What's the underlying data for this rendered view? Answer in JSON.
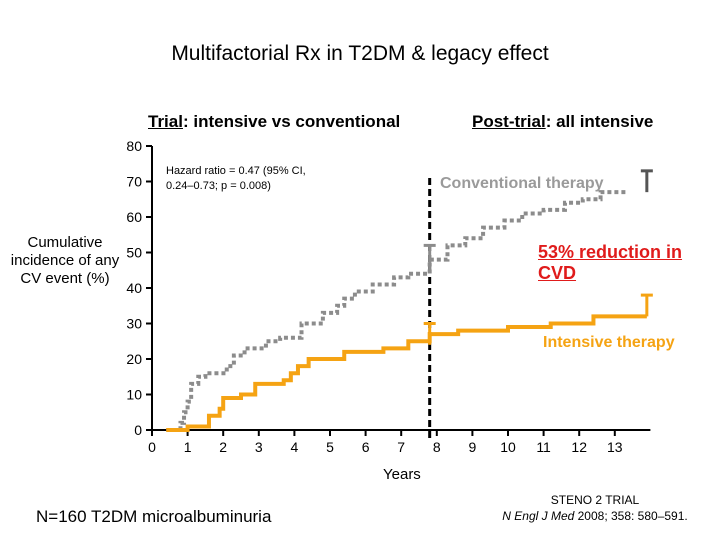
{
  "title": "Multifactorial Rx in T2DM & legacy effect",
  "subtitle_left": {
    "underlined": "Trial",
    "rest": ": intensive vs conventional"
  },
  "subtitle_right": {
    "underlined": "Post-trial",
    "rest": ": all intensive"
  },
  "hazard_ratio_text": "Hazard ratio = 0.47 (95% CI, 0.24–0.73; p = 0.008)",
  "conventional_label": "Conventional therapy",
  "reduction_label": "53% reduction in CVD",
  "intensive_label": "Intensive therapy",
  "footer_left": "N=160 T2DM microalbuminuria",
  "reference": {
    "line1": "STENO 2 TRIAL",
    "journal": "N Engl J Med",
    "rest": " 2008; 358: 580–591."
  },
  "colors": {
    "conventional": "#8c8c8c",
    "intensive": "#f5a313",
    "annotation": "#e01b1b",
    "axis": "#000000"
  },
  "chart_data": {
    "type": "line",
    "title": "Multifactorial Rx in T2DM & legacy effect",
    "xlabel": "Years",
    "ylabel": "Cumulative incidence of any CV event (%)",
    "xlim": [
      0,
      14
    ],
    "ylim": [
      0,
      80
    ],
    "x_ticks": [
      "0",
      "1",
      "2",
      "3",
      "4",
      "5",
      "6",
      "7",
      "8",
      "9",
      "10",
      "11",
      "12",
      "13"
    ],
    "y_ticks": [
      "0",
      "10",
      "20",
      "30",
      "40",
      "50",
      "60",
      "70",
      "80"
    ],
    "trial_end_year": 7.8,
    "series": [
      {
        "name": "Conventional therapy",
        "style": "dotted",
        "points": [
          [
            0.4,
            0
          ],
          [
            0.8,
            2
          ],
          [
            0.9,
            5
          ],
          [
            1.0,
            8
          ],
          [
            1.1,
            13
          ],
          [
            1.3,
            15
          ],
          [
            1.5,
            16
          ],
          [
            2.1,
            18
          ],
          [
            2.3,
            21
          ],
          [
            2.6,
            23
          ],
          [
            3.2,
            25
          ],
          [
            3.6,
            26
          ],
          [
            4.2,
            30
          ],
          [
            4.8,
            33
          ],
          [
            5.2,
            35
          ],
          [
            5.4,
            37
          ],
          [
            5.7,
            39
          ],
          [
            6.2,
            41
          ],
          [
            6.8,
            43
          ],
          [
            7.2,
            44
          ],
          [
            7.8,
            48
          ],
          [
            8.3,
            52
          ],
          [
            8.8,
            54
          ],
          [
            9.3,
            57
          ],
          [
            9.9,
            59
          ],
          [
            10.4,
            61
          ],
          [
            11.0,
            62
          ],
          [
            11.6,
            64
          ],
          [
            12.1,
            65
          ],
          [
            12.6,
            67
          ],
          [
            13.3,
            67
          ]
        ],
        "error_bar_years": [
          7.8,
          13.9
        ],
        "error_bar_ranges": [
          [
            45,
            52
          ],
          [
            67,
            73
          ]
        ]
      },
      {
        "name": "Intensive therapy",
        "style": "solid",
        "points": [
          [
            0.4,
            0
          ],
          [
            0.9,
            0
          ],
          [
            1.0,
            1
          ],
          [
            1.6,
            4
          ],
          [
            1.9,
            6
          ],
          [
            2.0,
            9
          ],
          [
            2.5,
            10
          ],
          [
            2.9,
            13
          ],
          [
            3.7,
            14
          ],
          [
            3.9,
            16
          ],
          [
            4.1,
            18
          ],
          [
            4.4,
            20
          ],
          [
            5.4,
            22
          ],
          [
            6.5,
            23
          ],
          [
            7.2,
            25
          ],
          [
            7.8,
            27
          ],
          [
            8.6,
            28
          ],
          [
            10.0,
            29
          ],
          [
            11.2,
            30
          ],
          [
            12.4,
            32
          ],
          [
            13.9,
            32
          ]
        ],
        "error_bar_years": [
          7.8,
          13.9
        ],
        "error_bar_ranges": [
          [
            24,
            30
          ],
          [
            32,
            38
          ]
        ]
      }
    ]
  }
}
